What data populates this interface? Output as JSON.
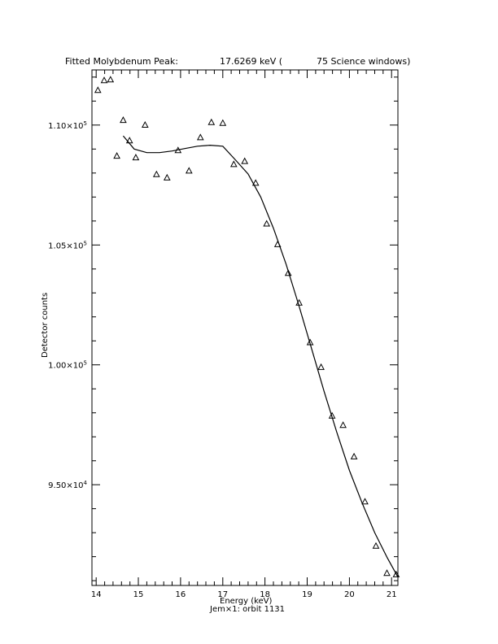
{
  "chart_data": {
    "type": "scatter",
    "title_left": "Fitted Molybdenum Peak:",
    "title_value": "17.6269 keV (",
    "title_right": "75 Science windows)",
    "xlabel": "Energy (keV)",
    "ylabel": "Detector counts",
    "footer": "Jem×1: orbit 1131",
    "xlim": [
      13.9,
      21.15
    ],
    "ylim": [
      90800,
      112300
    ],
    "x_ticks": [
      14,
      15,
      16,
      17,
      18,
      19,
      20,
      21
    ],
    "x_tick_labels": [
      "14",
      "15",
      "16",
      "17",
      "18",
      "19",
      "20",
      "21"
    ],
    "y_ticks": [
      95000,
      100000,
      105000,
      110000
    ],
    "y_tick_labels": [
      {
        "mantissa": "9.50×10",
        "exp": "4"
      },
      {
        "mantissa": "1.00×10",
        "exp": "5"
      },
      {
        "mantissa": "1.05×10",
        "exp": "5"
      },
      {
        "mantissa": "1.10×10",
        "exp": "5"
      }
    ],
    "points": [
      {
        "x": 14.04,
        "y": 111460
      },
      {
        "x": 14.19,
        "y": 111870
      },
      {
        "x": 14.34,
        "y": 111900
      },
      {
        "x": 14.49,
        "y": 108720
      },
      {
        "x": 14.64,
        "y": 110210
      },
      {
        "x": 14.79,
        "y": 109360
      },
      {
        "x": 14.94,
        "y": 108650
      },
      {
        "x": 15.16,
        "y": 110010
      },
      {
        "x": 15.43,
        "y": 107950
      },
      {
        "x": 15.68,
        "y": 107810
      },
      {
        "x": 15.94,
        "y": 108950
      },
      {
        "x": 16.2,
        "y": 108100
      },
      {
        "x": 16.47,
        "y": 109490
      },
      {
        "x": 16.73,
        "y": 110120
      },
      {
        "x": 17.0,
        "y": 110090
      },
      {
        "x": 17.26,
        "y": 108370
      },
      {
        "x": 17.52,
        "y": 108500
      },
      {
        "x": 17.78,
        "y": 107590
      },
      {
        "x": 18.04,
        "y": 105890
      },
      {
        "x": 18.3,
        "y": 105030
      },
      {
        "x": 18.55,
        "y": 103830
      },
      {
        "x": 18.81,
        "y": 102590
      },
      {
        "x": 19.07,
        "y": 100940
      },
      {
        "x": 19.33,
        "y": 99910
      },
      {
        "x": 19.59,
        "y": 97880
      },
      {
        "x": 19.85,
        "y": 97490
      },
      {
        "x": 20.11,
        "y": 96180
      },
      {
        "x": 20.37,
        "y": 94300
      },
      {
        "x": 20.63,
        "y": 92450
      },
      {
        "x": 20.89,
        "y": 91320
      },
      {
        "x": 21.11,
        "y": 91260
      }
    ],
    "fit_curve": {
      "x": [
        14.64,
        14.9,
        15.2,
        15.5,
        15.8,
        16.1,
        16.4,
        16.7,
        17.0,
        17.3,
        17.6,
        17.9,
        18.2,
        18.5,
        18.8,
        19.1,
        19.4,
        19.7,
        20.0,
        20.3,
        20.6,
        20.9,
        21.15
      ],
      "y": [
        109550,
        109000,
        108850,
        108850,
        108920,
        109020,
        109120,
        109160,
        109120,
        108550,
        107960,
        107000,
        105700,
        104200,
        102500,
        100700,
        98900,
        97200,
        95600,
        94250,
        93000,
        91950,
        91150
      ]
    }
  }
}
